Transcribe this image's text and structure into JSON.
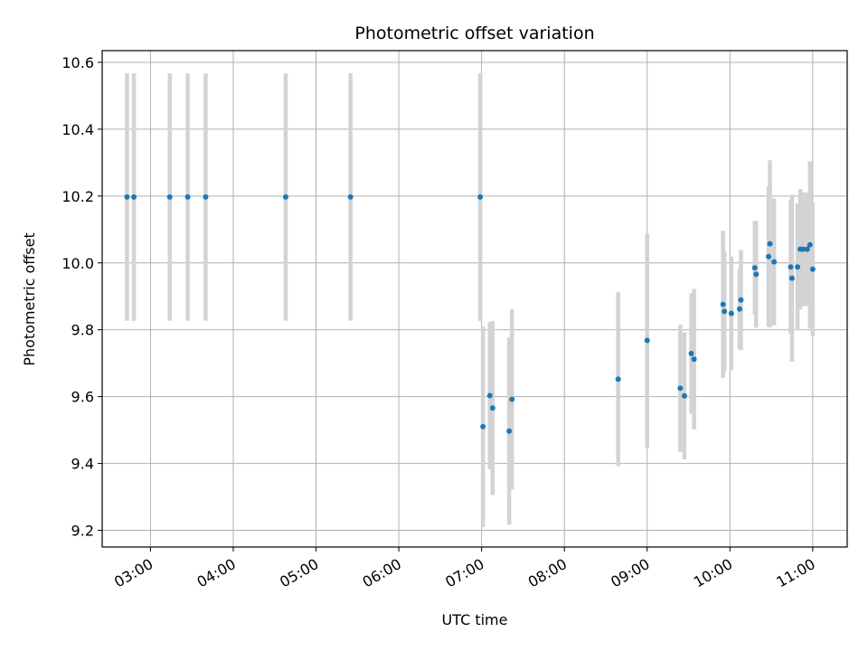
{
  "chart_data": {
    "type": "scatter",
    "title": "Photometric offset variation",
    "xlabel": "UTC time",
    "ylabel": "Photometric offset",
    "x_axis": {
      "kind": "time",
      "range": [
        "02:25",
        "11:25"
      ],
      "ticks": [
        "03:00",
        "04:00",
        "05:00",
        "06:00",
        "07:00",
        "08:00",
        "09:00",
        "10:00",
        "11:00"
      ]
    },
    "y_axis": {
      "range": [
        9.15,
        10.635
      ],
      "ticks": [
        "9.2",
        "9.4",
        "9.6",
        "9.8",
        "10.0",
        "10.2",
        "10.4",
        "10.6"
      ]
    },
    "grid": true,
    "series": [
      {
        "marker_color": "#1f77b4",
        "errorbar_color": "#d3d3d3",
        "points": [
          {
            "x": "02:43",
            "y": 10.197,
            "err": 0.37
          },
          {
            "x": "02:48",
            "y": 10.197,
            "err": 0.37
          },
          {
            "x": "03:14",
            "y": 10.197,
            "err": 0.37
          },
          {
            "x": "03:27",
            "y": 10.197,
            "err": 0.37
          },
          {
            "x": "03:40",
            "y": 10.197,
            "err": 0.37
          },
          {
            "x": "04:38",
            "y": 10.197,
            "err": 0.37
          },
          {
            "x": "05:25",
            "y": 10.197,
            "err": 0.37
          },
          {
            "x": "06:59",
            "y": 10.197,
            "err": 0.37
          },
          {
            "x": "07:01",
            "y": 9.51,
            "err": 0.3
          },
          {
            "x": "07:06",
            "y": 9.603,
            "err": 0.22
          },
          {
            "x": "07:08",
            "y": 9.566,
            "err": 0.26
          },
          {
            "x": "07:20",
            "y": 9.497,
            "err": 0.28
          },
          {
            "x": "07:22",
            "y": 9.592,
            "err": 0.27
          },
          {
            "x": "08:39",
            "y": 9.652,
            "err": 0.26
          },
          {
            "x": "09:00",
            "y": 9.768,
            "err": 0.32
          },
          {
            "x": "09:24",
            "y": 9.625,
            "err": 0.19
          },
          {
            "x": "09:27",
            "y": 9.602,
            "err": 0.19
          },
          {
            "x": "09:32",
            "y": 9.729,
            "err": 0.18
          },
          {
            "x": "09:34",
            "y": 9.712,
            "err": 0.21
          },
          {
            "x": "09:55",
            "y": 9.876,
            "err": 0.22
          },
          {
            "x": "09:56",
            "y": 9.855,
            "err": 0.18
          },
          {
            "x": "10:01",
            "y": 9.849,
            "err": 0.17
          },
          {
            "x": "10:07",
            "y": 9.862,
            "err": 0.12
          },
          {
            "x": "10:08",
            "y": 9.889,
            "err": 0.15
          },
          {
            "x": "10:18",
            "y": 9.985,
            "err": 0.14
          },
          {
            "x": "10:19",
            "y": 9.966,
            "err": 0.16
          },
          {
            "x": "10:28",
            "y": 10.019,
            "err": 0.21
          },
          {
            "x": "10:29",
            "y": 10.057,
            "err": 0.25
          },
          {
            "x": "10:32",
            "y": 10.003,
            "err": 0.19
          },
          {
            "x": "10:44",
            "y": 9.988,
            "err": 0.2
          },
          {
            "x": "10:45",
            "y": 9.954,
            "err": 0.25
          },
          {
            "x": "10:49",
            "y": 9.988,
            "err": 0.19
          },
          {
            "x": "10:51",
            "y": 10.041,
            "err": 0.18
          },
          {
            "x": "10:53",
            "y": 10.041,
            "err": 0.17
          },
          {
            "x": "10:56",
            "y": 10.041,
            "err": 0.17
          },
          {
            "x": "10:58",
            "y": 10.054,
            "err": 0.25
          },
          {
            "x": "11:00",
            "y": 9.981,
            "err": 0.2
          }
        ]
      }
    ]
  }
}
